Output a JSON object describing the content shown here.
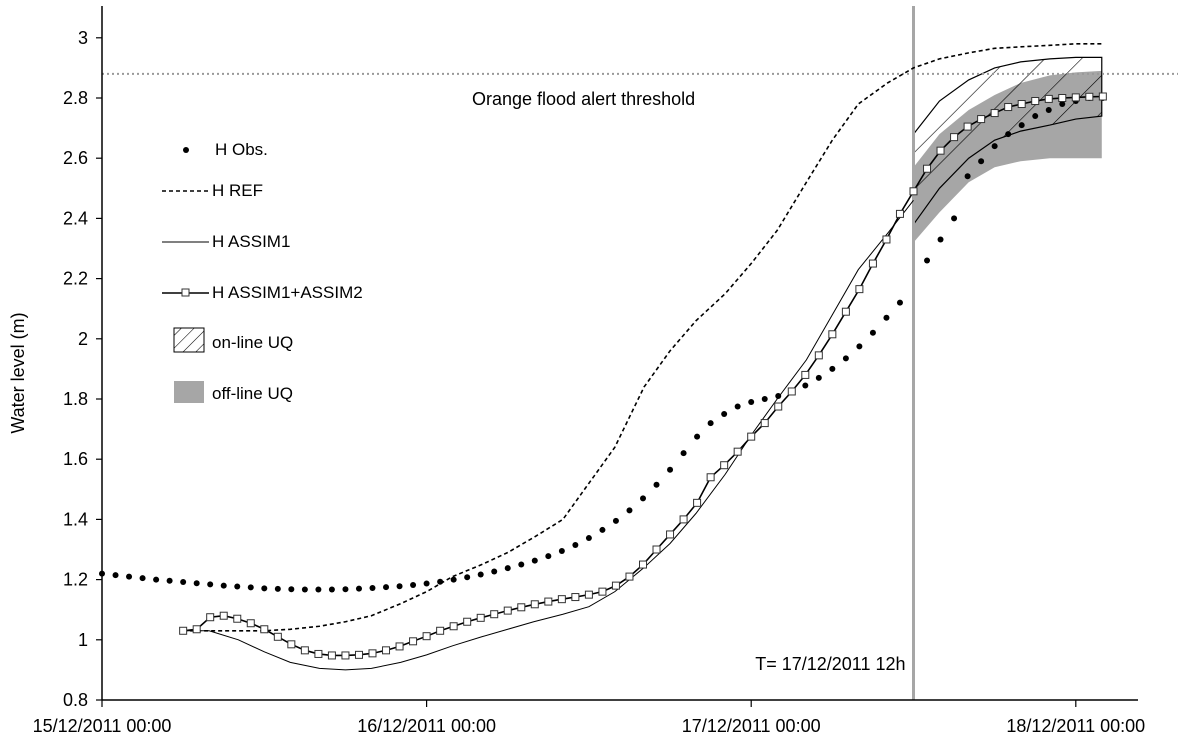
{
  "chart_data": {
    "type": "line",
    "title": "",
    "ylabel": "Water level (m)",
    "xlabel": "",
    "ylim": [
      0.8,
      3.1
    ],
    "yticks": [
      "0.8",
      "1",
      "1.2",
      "1.4",
      "1.6",
      "1.8",
      "2",
      "2.2",
      "2.4",
      "2.6",
      "2.8",
      "3"
    ],
    "xlim": [
      0,
      3.12
    ],
    "xticks": [
      {
        "x": 0,
        "label": "15/12/2011 00:00"
      },
      {
        "x": 1,
        "label": "16/12/2011 00:00"
      },
      {
        "x": 2,
        "label": "17/12/2011 00:00"
      },
      {
        "x": 3,
        "label": "18/12/2011 00:00"
      }
    ],
    "x_unit": "days since 15/12/2011 00:00",
    "threshold": {
      "y": 2.88,
      "label": "Orange flood alert threshold",
      "color": "#999999"
    },
    "forecast_time": {
      "x": 2.5,
      "label": "T= 17/12/2011 12h",
      "color": "#a6a6a6"
    },
    "legend": [
      {
        "key": "obs",
        "label": "H Obs."
      },
      {
        "key": "ref",
        "label": "H REF"
      },
      {
        "key": "assim1",
        "label": "H ASSIM1"
      },
      {
        "key": "assim12",
        "label": "H ASSIM1+ASSIM2"
      },
      {
        "key": "online",
        "label": "on-line UQ"
      },
      {
        "key": "offline",
        "label": "off-line UQ"
      }
    ],
    "series": [
      {
        "name": "H Obs.",
        "style": "dots",
        "x": [
          0,
          0.0417,
          0.0833,
          0.125,
          0.1667,
          0.2083,
          0.25,
          0.2917,
          0.3333,
          0.375,
          0.4167,
          0.4583,
          0.5,
          0.5417,
          0.5833,
          0.625,
          0.6667,
          0.7083,
          0.75,
          0.7917,
          0.8333,
          0.875,
          0.9167,
          0.9583,
          1.0,
          1.0417,
          1.0833,
          1.125,
          1.1667,
          1.2083,
          1.25,
          1.2917,
          1.3333,
          1.375,
          1.4167,
          1.4583,
          1.5,
          1.5417,
          1.5833,
          1.625,
          1.6667,
          1.7083,
          1.75,
          1.7917,
          1.8333,
          1.875,
          1.9167,
          1.9583,
          2.0,
          2.0417,
          2.0833,
          2.125,
          2.1667,
          2.2083,
          2.25,
          2.2917,
          2.3333,
          2.375,
          2.4167,
          2.4583,
          2.5417,
          2.5833,
          2.625,
          2.6667,
          2.7083,
          2.75,
          2.7917,
          2.8333,
          2.875,
          2.9167,
          2.9583,
          3.0,
          3.0417,
          3.0833
        ],
        "y": [
          1.22,
          1.215,
          1.21,
          1.205,
          1.2,
          1.196,
          1.192,
          1.188,
          1.184,
          1.18,
          1.177,
          1.174,
          1.171,
          1.169,
          1.168,
          1.167,
          1.167,
          1.167,
          1.168,
          1.17,
          1.172,
          1.175,
          1.178,
          1.182,
          1.187,
          1.193,
          1.2,
          1.208,
          1.217,
          1.227,
          1.238,
          1.25,
          1.263,
          1.278,
          1.295,
          1.315,
          1.338,
          1.365,
          1.395,
          1.43,
          1.47,
          1.515,
          1.565,
          1.62,
          1.675,
          1.72,
          1.75,
          1.775,
          1.79,
          1.8,
          1.81,
          1.825,
          1.845,
          1.87,
          1.9,
          1.935,
          1.975,
          2.02,
          2.07,
          2.12,
          2.26,
          2.33,
          2.4,
          2.54,
          2.59,
          2.64,
          2.68,
          2.71,
          2.74,
          2.76,
          2.78,
          2.79,
          2.8,
          2.8
        ]
      },
      {
        "name": "H REF",
        "style": "dashed",
        "x": [
          0.25,
          0.33,
          0.42,
          0.5,
          0.58,
          0.67,
          0.75,
          0.83,
          0.92,
          1.0,
          1.08,
          1.17,
          1.25,
          1.33,
          1.42,
          1.5,
          1.58,
          1.67,
          1.75,
          1.83,
          1.92,
          2.0,
          2.08,
          2.17,
          2.25,
          2.33,
          2.42,
          2.5,
          2.58,
          2.67,
          2.75,
          2.83,
          2.92,
          3.0,
          3.04,
          3.08
        ],
        "y": [
          1.03,
          1.03,
          1.03,
          1.03,
          1.035,
          1.045,
          1.06,
          1.08,
          1.12,
          1.16,
          1.21,
          1.25,
          1.29,
          1.34,
          1.4,
          1.52,
          1.64,
          1.84,
          1.96,
          2.06,
          2.15,
          2.25,
          2.36,
          2.52,
          2.66,
          2.78,
          2.85,
          2.9,
          2.93,
          2.95,
          2.965,
          2.97,
          2.975,
          2.98,
          2.98,
          2.98
        ]
      },
      {
        "name": "H ASSIM1",
        "style": "thin",
        "x": [
          0.25,
          0.33,
          0.42,
          0.5,
          0.58,
          0.67,
          0.75,
          0.83,
          0.92,
          1.0,
          1.08,
          1.17,
          1.25,
          1.33,
          1.42,
          1.5,
          1.58,
          1.67,
          1.75,
          1.83,
          1.92,
          2.0,
          2.08,
          2.17,
          2.25,
          2.33,
          2.42,
          2.5
        ],
        "y": [
          1.03,
          1.03,
          1.0,
          0.96,
          0.925,
          0.905,
          0.9,
          0.905,
          0.925,
          0.95,
          0.98,
          1.01,
          1.035,
          1.06,
          1.085,
          1.11,
          1.16,
          1.24,
          1.32,
          1.42,
          1.55,
          1.68,
          1.8,
          1.93,
          2.08,
          2.23,
          2.35,
          2.46
        ]
      },
      {
        "name": "H ASSIM1+ASSIM2",
        "style": "squares",
        "x": [
          0.25,
          0.2917,
          0.3333,
          0.375,
          0.4167,
          0.4583,
          0.5,
          0.5417,
          0.5833,
          0.625,
          0.6667,
          0.7083,
          0.75,
          0.7917,
          0.8333,
          0.875,
          0.9167,
          0.9583,
          1.0,
          1.0417,
          1.0833,
          1.125,
          1.1667,
          1.2083,
          1.25,
          1.2917,
          1.3333,
          1.375,
          1.4167,
          1.4583,
          1.5,
          1.5417,
          1.5833,
          1.625,
          1.6667,
          1.7083,
          1.75,
          1.7917,
          1.8333,
          1.875,
          1.9167,
          1.9583,
          2.0,
          2.0417,
          2.0833,
          2.125,
          2.1667,
          2.2083,
          2.25,
          2.2917,
          2.3333,
          2.375,
          2.4167,
          2.4583,
          2.5,
          2.5417,
          2.5833,
          2.625,
          2.6667,
          2.7083,
          2.75,
          2.7917,
          2.8333,
          2.875,
          2.9167,
          2.9583,
          3.0,
          3.0417,
          3.0833
        ],
        "y": [
          1.03,
          1.035,
          1.075,
          1.08,
          1.07,
          1.055,
          1.035,
          1.01,
          0.985,
          0.965,
          0.953,
          0.948,
          0.948,
          0.95,
          0.955,
          0.965,
          0.978,
          0.995,
          1.012,
          1.03,
          1.045,
          1.06,
          1.073,
          1.085,
          1.097,
          1.108,
          1.118,
          1.127,
          1.135,
          1.142,
          1.15,
          1.16,
          1.18,
          1.21,
          1.25,
          1.3,
          1.35,
          1.4,
          1.455,
          1.54,
          1.58,
          1.625,
          1.675,
          1.72,
          1.775,
          1.825,
          1.88,
          1.945,
          2.015,
          2.09,
          2.165,
          2.25,
          2.33,
          2.415,
          2.49,
          2.565,
          2.625,
          2.67,
          2.705,
          2.73,
          2.75,
          2.77,
          2.78,
          2.79,
          2.797,
          2.8,
          2.802,
          2.804,
          2.805
        ]
      }
    ],
    "bands": [
      {
        "name": "off-line UQ",
        "style": "gray-fill",
        "color": "#a6a6a6",
        "x": [
          2.5,
          2.58,
          2.67,
          2.75,
          2.83,
          2.92,
          3.0,
          3.08
        ],
        "upper": [
          2.57,
          2.68,
          2.76,
          2.81,
          2.85,
          2.875,
          2.885,
          2.89
        ],
        "lower": [
          2.32,
          2.42,
          2.52,
          2.57,
          2.59,
          2.6,
          2.6,
          2.6
        ]
      },
      {
        "name": "on-line UQ",
        "style": "hatched",
        "x": [
          2.5,
          2.58,
          2.67,
          2.75,
          2.83,
          2.92,
          3.0,
          3.08
        ],
        "upper": [
          2.68,
          2.79,
          2.86,
          2.9,
          2.92,
          2.93,
          2.935,
          2.935
        ],
        "lower": [
          2.38,
          2.5,
          2.6,
          2.66,
          2.69,
          2.71,
          2.73,
          2.74
        ]
      }
    ]
  }
}
